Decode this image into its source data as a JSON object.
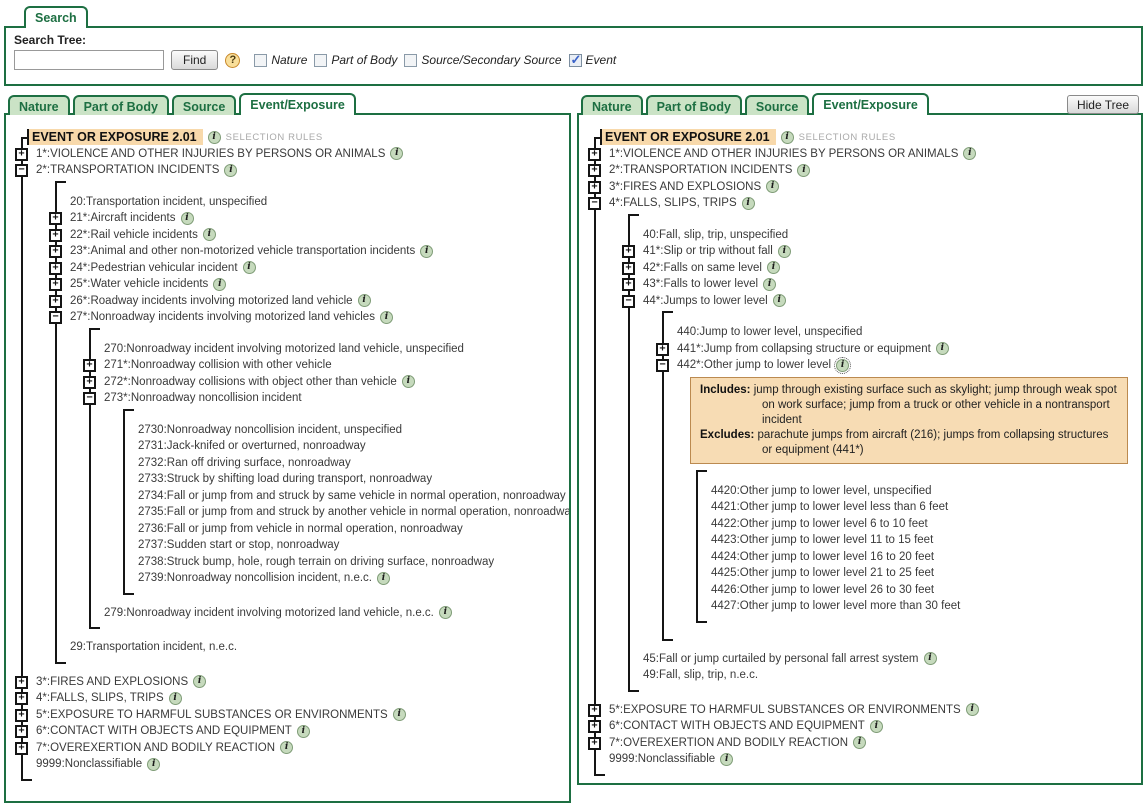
{
  "colors": {
    "accent_green": "#1d6f42",
    "tab_inactive_bg": "#cbe3c6",
    "root_highlight_bg": "#f8d9ab",
    "note_bg": "#f7dcb4",
    "note_border": "#bb8a50",
    "checked_check": "#3a62c8"
  },
  "icons": {
    "info": "i",
    "plus": "+",
    "minus": "−",
    "help": "?"
  },
  "tree_separator": " : ",
  "search_panel": {
    "tab": "Search",
    "label": "Search Tree:",
    "input_value": "",
    "find_button": "Find",
    "checkboxes": [
      {
        "label": "Nature",
        "checked": false
      },
      {
        "label": "Part of Body",
        "checked": false
      },
      {
        "label": "Source/Secondary Source",
        "checked": false
      },
      {
        "label": "Event",
        "checked": true
      }
    ]
  },
  "hide_tree_button": "Hide Tree",
  "panels": [
    {
      "tabs": [
        {
          "label": "Nature",
          "active": false
        },
        {
          "label": "Part of Body",
          "active": false
        },
        {
          "label": "Source",
          "active": false
        },
        {
          "label": "Event/Exposure",
          "active": true
        }
      ],
      "root": {
        "label": "EVENT OR EXPOSURE 2.01",
        "info": true,
        "suffix": "SELECTION RULES"
      },
      "nodes": [
        {
          "code": "1*",
          "label": "VIOLENCE AND OTHER INJURIES BY PERSONS OR ANIMALS",
          "expander": "plus",
          "info": true
        },
        {
          "code": "2*",
          "label": "TRANSPORTATION INCIDENTS",
          "expander": "minus",
          "info": true,
          "children": [
            {
              "code": "20",
              "label": "Transportation incident, unspecified"
            },
            {
              "code": "21*",
              "label": "Aircraft incidents",
              "expander": "plus",
              "info": true
            },
            {
              "code": "22*",
              "label": "Rail vehicle incidents",
              "expander": "plus",
              "info": true
            },
            {
              "code": "23*",
              "label": "Animal and other non-motorized vehicle transportation incidents",
              "expander": "plus",
              "info": true
            },
            {
              "code": "24*",
              "label": "Pedestrian vehicular incident",
              "expander": "plus",
              "info": true
            },
            {
              "code": "25*",
              "label": "Water vehicle incidents",
              "expander": "plus",
              "info": true
            },
            {
              "code": "26*",
              "label": "Roadway incidents involving motorized land vehicle",
              "expander": "plus",
              "info": true
            },
            {
              "code": "27*",
              "label": "Nonroadway incidents involving motorized land vehicles",
              "expander": "minus",
              "info": true,
              "children": [
                {
                  "code": "270",
                  "label": "Nonroadway incident involving motorized land vehicle, unspecified"
                },
                {
                  "code": "271*",
                  "label": "Nonroadway collision with other vehicle",
                  "expander": "plus"
                },
                {
                  "code": "272*",
                  "label": "Nonroadway collisions with object other than vehicle",
                  "expander": "plus",
                  "info": true
                },
                {
                  "code": "273*",
                  "label": "Nonroadway noncollision incident",
                  "expander": "minus",
                  "children": [
                    {
                      "code": "2730",
                      "label": "Nonroadway noncollision incident, unspecified"
                    },
                    {
                      "code": "2731",
                      "label": "Jack-knifed or overturned, nonroadway"
                    },
                    {
                      "code": "2732",
                      "label": "Ran off driving surface, nonroadway"
                    },
                    {
                      "code": "2733",
                      "label": "Struck by shifting load during transport, nonroadway"
                    },
                    {
                      "code": "2734",
                      "label": "Fall or jump from and struck by same vehicle in normal operation, nonroadway"
                    },
                    {
                      "code": "2735",
                      "label": "Fall or jump from and struck by another vehicle in normal operation, nonroadway"
                    },
                    {
                      "code": "2736",
                      "label": "Fall or jump from vehicle in normal operation, nonroadway"
                    },
                    {
                      "code": "2737",
                      "label": "Sudden start or stop, nonroadway"
                    },
                    {
                      "code": "2738",
                      "label": "Struck bump, hole, rough terrain on driving surface, nonroadway"
                    },
                    {
                      "code": "2739",
                      "label": "Nonroadway noncollision incident, n.e.c.",
                      "info": true
                    }
                  ]
                },
                {
                  "code": "279",
                  "label": "Nonroadway incident involving motorized land vehicle, n.e.c.",
                  "info": true
                }
              ]
            },
            {
              "code": "29",
              "label": "Transportation incident, n.e.c."
            }
          ]
        },
        {
          "code": "3*",
          "label": "FIRES AND EXPLOSIONS",
          "expander": "plus",
          "info": true
        },
        {
          "code": "4*",
          "label": "FALLS, SLIPS, TRIPS",
          "expander": "plus",
          "info": true
        },
        {
          "code": "5*",
          "label": "EXPOSURE TO HARMFUL SUBSTANCES OR ENVIRONMENTS",
          "expander": "plus",
          "info": true
        },
        {
          "code": "6*",
          "label": "CONTACT WITH OBJECTS AND EQUIPMENT",
          "expander": "plus",
          "info": true
        },
        {
          "code": "7*",
          "label": "OVEREXERTION AND BODILY REACTION",
          "expander": "plus",
          "info": true
        },
        {
          "code": "9999",
          "label": "Nonclassifiable",
          "info": true
        }
      ]
    },
    {
      "tabs": [
        {
          "label": "Nature",
          "active": false
        },
        {
          "label": "Part of Body",
          "active": false
        },
        {
          "label": "Source",
          "active": false
        },
        {
          "label": "Event/Exposure",
          "active": true
        }
      ],
      "root": {
        "label": "EVENT OR EXPOSURE 2.01",
        "info": true,
        "suffix": "SELECTION RULES"
      },
      "nodes": [
        {
          "code": "1*",
          "label": "VIOLENCE AND OTHER INJURIES BY PERSONS OR ANIMALS",
          "expander": "plus",
          "info": true
        },
        {
          "code": "2*",
          "label": "TRANSPORTATION INCIDENTS",
          "expander": "plus",
          "info": true
        },
        {
          "code": "3*",
          "label": "FIRES AND EXPLOSIONS",
          "expander": "plus",
          "info": true
        },
        {
          "code": "4*",
          "label": "FALLS, SLIPS, TRIPS",
          "expander": "minus",
          "info": true,
          "children": [
            {
              "code": "40",
              "label": "Fall, slip, trip, unspecified"
            },
            {
              "code": "41*",
              "label": "Slip or trip without fall",
              "expander": "plus",
              "info": true
            },
            {
              "code": "42*",
              "label": "Falls on same level",
              "expander": "plus",
              "info": true
            },
            {
              "code": "43*",
              "label": "Falls to lower level",
              "expander": "plus",
              "info": true
            },
            {
              "code": "44*",
              "label": "Jumps to lower level",
              "expander": "minus",
              "info": true,
              "children": [
                {
                  "code": "440",
                  "label": "Jump to lower level, unspecified"
                },
                {
                  "code": "441*",
                  "label": "Jump from collapsing structure or equipment",
                  "expander": "plus",
                  "info": true
                },
                {
                  "code": "442*",
                  "label": "Other jump to lower level",
                  "expander": "minus",
                  "info": true,
                  "info_selected": true,
                  "note": {
                    "includes_label": "Includes:",
                    "includes": "jump through existing surface such as skylight; jump through weak spot on work surface; jump from a truck or other vehicle in a nontransport incident",
                    "excludes_label": "Excludes:",
                    "excludes": "parachute jumps from aircraft (216); jumps from collapsing structures or equipment (441*)"
                  },
                  "children": [
                    {
                      "code": "4420",
                      "label": "Other jump to lower level, unspecified"
                    },
                    {
                      "code": "4421",
                      "label": "Other jump to lower level less than 6 feet"
                    },
                    {
                      "code": "4422",
                      "label": "Other jump to lower level 6 to 10 feet"
                    },
                    {
                      "code": "4423",
                      "label": "Other jump to lower level 11 to 15 feet"
                    },
                    {
                      "code": "4424",
                      "label": "Other jump to lower level 16 to 20 feet"
                    },
                    {
                      "code": "4425",
                      "label": "Other jump to lower level 21 to 25 feet"
                    },
                    {
                      "code": "4426",
                      "label": "Other jump to lower level 26 to 30 feet"
                    },
                    {
                      "code": "4427",
                      "label": "Other jump to lower level more than 30 feet"
                    }
                  ]
                }
              ]
            },
            {
              "code": "45",
              "label": "Fall or jump curtailed by personal fall arrest system",
              "info": true
            },
            {
              "code": "49",
              "label": "Fall, slip, trip, n.e.c."
            }
          ]
        },
        {
          "code": "5*",
          "label": "EXPOSURE TO HARMFUL SUBSTANCES OR ENVIRONMENTS",
          "expander": "plus",
          "info": true
        },
        {
          "code": "6*",
          "label": "CONTACT WITH OBJECTS AND EQUIPMENT",
          "expander": "plus",
          "info": true
        },
        {
          "code": "7*",
          "label": "OVEREXERTION AND BODILY REACTION",
          "expander": "plus",
          "info": true
        },
        {
          "code": "9999",
          "label": "Nonclassifiable",
          "info": true
        }
      ]
    }
  ]
}
